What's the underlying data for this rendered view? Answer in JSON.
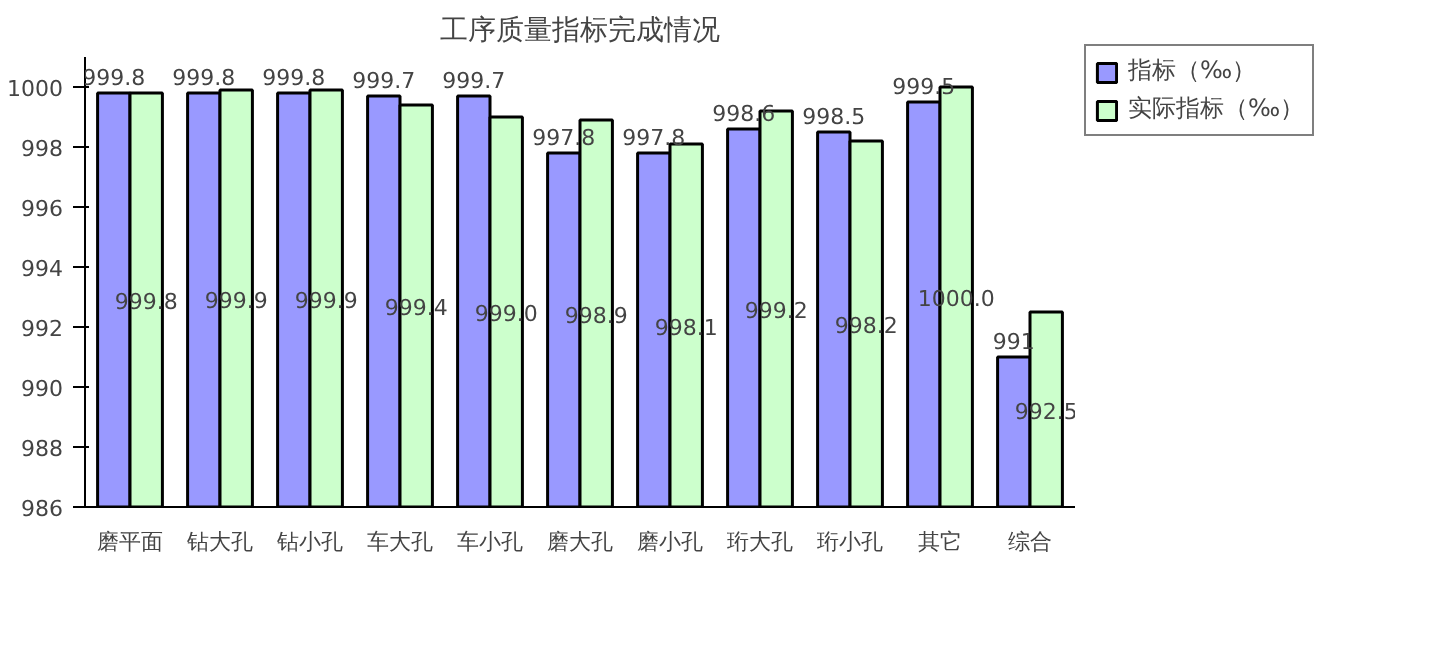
{
  "chart_data": {
    "type": "bar",
    "title": "工序质量指标完成情况",
    "categories": [
      "磨平面",
      "钻大孔",
      "钻小孔",
      "车大孔",
      "车小孔",
      "磨大孔",
      "磨小孔",
      "珩大孔",
      "珩小孔",
      "其它",
      "综合"
    ],
    "series": [
      {
        "name": "指标（‰）",
        "color": "#9999ff",
        "values": [
          999.8,
          999.8,
          999.8,
          999.7,
          999.7,
          997.8,
          997.8,
          998.6,
          998.5,
          999.5,
          991
        ],
        "value_labels": [
          "999.8",
          "999.8",
          "999.8",
          "999.7",
          "999.7",
          "997.8",
          "997.8",
          "998.6",
          "998.5",
          "999.5",
          "991"
        ]
      },
      {
        "name": "实际指标（‰）",
        "color": "#ccffcc",
        "values": [
          999.8,
          999.9,
          999.9,
          999.4,
          999.0,
          998.9,
          998.1,
          999.2,
          998.2,
          1000.0,
          992.5
        ],
        "value_labels": [
          "999.8",
          "999.9",
          "999.9",
          "999.4",
          "999.0",
          "998.9",
          "998.1",
          "999.2",
          "998.2",
          "1000.0",
          "992.5"
        ]
      }
    ],
    "ylim": [
      986,
      1001
    ],
    "yticks": [
      986,
      988,
      990,
      992,
      994,
      996,
      998,
      1000
    ],
    "grid": false,
    "legend": "top right"
  }
}
